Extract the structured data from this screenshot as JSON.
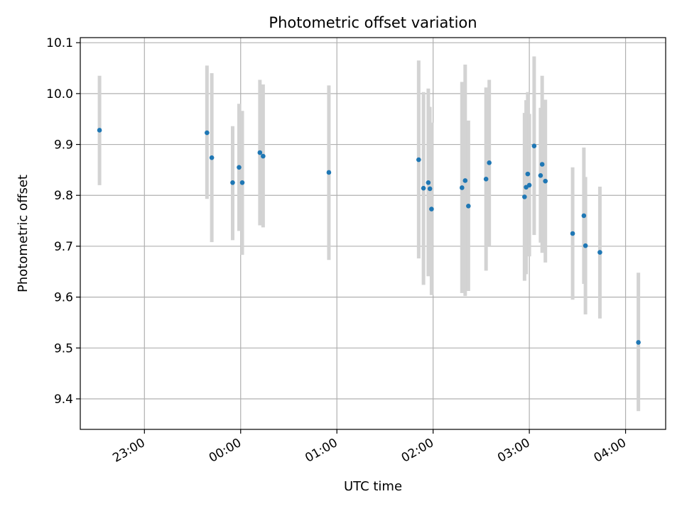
{
  "chart_data": {
    "type": "scatter",
    "title": "Photometric offset variation",
    "xlabel": "UTC time",
    "ylabel": "Photometric offset",
    "grid": true,
    "x_ticks": [
      "23:00",
      "00:00",
      "01:00",
      "02:00",
      "03:00",
      "04:00"
    ],
    "y_ticks": [
      "9.4",
      "9.5",
      "9.6",
      "9.7",
      "9.8",
      "9.9",
      "10.0",
      "10.1"
    ],
    "x_range": [
      "22:20",
      "04:25"
    ],
    "ylim": [
      9.34,
      10.11
    ],
    "colors": {
      "point": "#1f77b4",
      "errorbar": "#d3d3d3",
      "grid": "#b0b0b0"
    },
    "points": [
      {
        "t": "22:32",
        "y": 9.928,
        "lo": 9.82,
        "hi": 10.035
      },
      {
        "t": "23:39",
        "y": 9.923,
        "lo": 9.793,
        "hi": 10.055
      },
      {
        "t": "23:42",
        "y": 9.874,
        "lo": 9.708,
        "hi": 10.04
      },
      {
        "t": "23:55",
        "y": 9.825,
        "lo": 9.712,
        "hi": 9.936
      },
      {
        "t": "23:59",
        "y": 9.855,
        "lo": 9.73,
        "hi": 9.98
      },
      {
        "t": "00:01",
        "y": 9.825,
        "lo": 9.683,
        "hi": 9.966
      },
      {
        "t": "00:12",
        "y": 9.884,
        "lo": 9.741,
        "hi": 10.027
      },
      {
        "t": "00:14",
        "y": 9.877,
        "lo": 9.737,
        "hi": 10.018
      },
      {
        "t": "00:55",
        "y": 9.845,
        "lo": 9.673,
        "hi": 10.016
      },
      {
        "t": "01:51",
        "y": 9.87,
        "lo": 9.676,
        "hi": 10.065
      },
      {
        "t": "01:54",
        "y": 9.814,
        "lo": 9.624,
        "hi": 10.003
      },
      {
        "t": "01:57",
        "y": 9.825,
        "lo": 9.641,
        "hi": 10.01
      },
      {
        "t": "01:58",
        "y": 9.813,
        "lo": 9.652,
        "hi": 9.974
      },
      {
        "t": "01:59",
        "y": 9.773,
        "lo": 9.604,
        "hi": 9.943
      },
      {
        "t": "02:18",
        "y": 9.815,
        "lo": 9.608,
        "hi": 10.023
      },
      {
        "t": "02:20",
        "y": 9.829,
        "lo": 9.602,
        "hi": 10.057
      },
      {
        "t": "02:22",
        "y": 9.779,
        "lo": 9.612,
        "hi": 9.947
      },
      {
        "t": "02:33",
        "y": 9.832,
        "lo": 9.652,
        "hi": 10.012
      },
      {
        "t": "02:35",
        "y": 9.864,
        "lo": 9.7,
        "hi": 10.027
      },
      {
        "t": "02:57",
        "y": 9.797,
        "lo": 9.632,
        "hi": 9.962
      },
      {
        "t": "02:58",
        "y": 9.816,
        "lo": 9.645,
        "hi": 9.987
      },
      {
        "t": "02:59",
        "y": 9.842,
        "lo": 9.682,
        "hi": 10.003
      },
      {
        "t": "03:00",
        "y": 9.82,
        "lo": 9.68,
        "hi": 9.96
      },
      {
        "t": "03:03",
        "y": 9.897,
        "lo": 9.722,
        "hi": 10.073
      },
      {
        "t": "03:07",
        "y": 9.839,
        "lo": 9.707,
        "hi": 9.972
      },
      {
        "t": "03:08",
        "y": 9.861,
        "lo": 9.687,
        "hi": 10.035
      },
      {
        "t": "03:10",
        "y": 9.828,
        "lo": 9.668,
        "hi": 9.988
      },
      {
        "t": "03:27",
        "y": 9.725,
        "lo": 9.595,
        "hi": 9.855
      },
      {
        "t": "03:34",
        "y": 9.76,
        "lo": 9.626,
        "hi": 9.894
      },
      {
        "t": "03:35",
        "y": 9.701,
        "lo": 9.566,
        "hi": 9.836
      },
      {
        "t": "03:44",
        "y": 9.688,
        "lo": 9.558,
        "hi": 9.817
      },
      {
        "t": "04:08",
        "y": 9.511,
        "lo": 9.376,
        "hi": 9.648
      }
    ]
  }
}
